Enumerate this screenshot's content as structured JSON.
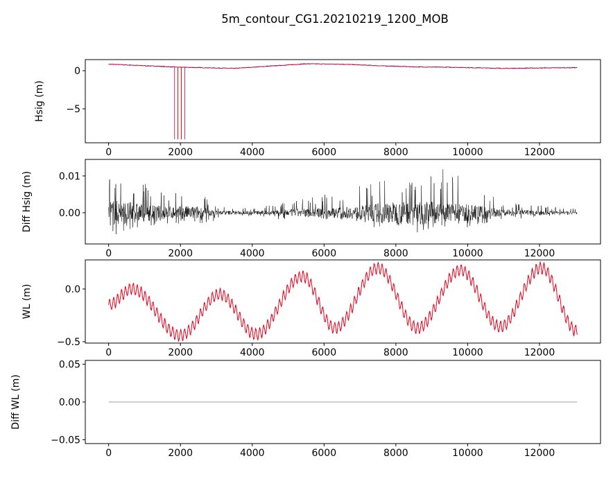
{
  "chart_data": {
    "type": "line",
    "title": "5m_contour_CG1.20210219_1200_MOB",
    "colors": {
      "series_a": "#0000ff",
      "series_b": "#ff0000",
      "diff": "#000000",
      "diff_zero": "#808080"
    },
    "x_ticks": [
      0,
      2000,
      4000,
      6000,
      8000,
      10000,
      12000
    ],
    "x_tick_labels": [
      "0",
      "2000",
      "4000",
      "6000",
      "8000",
      "10000",
      "12000"
    ],
    "xlim": [
      -650,
      13700
    ],
    "x_range": [
      0,
      13050
    ],
    "subplots": [
      {
        "ylabel": "Hsig (m)",
        "ylim": [
          -9.45,
          1.45
        ],
        "y_ticks": [
          0,
          -5
        ],
        "y_tick_labels": [
          "0",
          "−5"
        ],
        "key_x": [
          0,
          1000,
          2000,
          3000,
          3500,
          4500,
          5500,
          6500,
          7500,
          8500,
          9500,
          10500,
          11000,
          12000,
          13050
        ],
        "key_y": [
          0.85,
          0.65,
          0.45,
          0.35,
          0.3,
          0.6,
          0.9,
          0.85,
          0.65,
          0.5,
          0.45,
          0.35,
          0.3,
          0.35,
          0.4
        ],
        "spikes_x": [
          1836,
          1927,
          2024,
          2120
        ],
        "spike_y": -9.0
      },
      {
        "ylabel": "Diff Hsig (m)",
        "ylim": [
          -0.0085,
          0.0145
        ],
        "y_ticks": [
          0.01,
          0.0
        ],
        "y_tick_labels": [
          "0.01",
          "0.00"
        ],
        "envelope_x": [
          0,
          500,
          1500,
          2500,
          3000,
          4000,
          5000,
          6000,
          7000,
          8000,
          9000,
          9400,
          10000,
          11000,
          12000,
          13050
        ],
        "envelope_pos": [
          0.012,
          0.01,
          0.006,
          0.006,
          0.002,
          0.0015,
          0.003,
          0.005,
          0.008,
          0.01,
          0.011,
          0.013,
          0.008,
          0.003,
          0.002,
          0.001
        ],
        "envelope_neg": [
          -0.007,
          -0.005,
          -0.003,
          -0.004,
          -0.002,
          -0.001,
          -0.002,
          -0.002,
          -0.003,
          -0.006,
          -0.005,
          -0.004,
          -0.004,
          -0.002,
          -0.001,
          -0.0005
        ]
      },
      {
        "ylabel": "WL (m)",
        "ylim": [
          -0.513,
          0.276
        ],
        "y_ticks": [
          0.0,
          -0.5
        ],
        "y_tick_labels": [
          "0.0",
          "−0.5"
        ],
        "key_x": [
          0,
          650,
          2000,
          3100,
          4100,
          5400,
          6300,
          7500,
          8600,
          9800,
          10900,
          12050,
          13050
        ],
        "key_y": [
          -0.15,
          0.0,
          -0.44,
          -0.05,
          -0.43,
          0.12,
          -0.37,
          0.2,
          -0.37,
          0.18,
          -0.36,
          0.2,
          -0.4
        ],
        "ripple_amplitude": 0.05,
        "ripple_period": 110
      },
      {
        "ylabel": "Diff WL (m)",
        "ylim": [
          -0.055,
          0.055
        ],
        "y_ticks": [
          0.05,
          0.0,
          -0.05
        ],
        "y_tick_labels": [
          "0.05",
          "0.00",
          "−0.05"
        ],
        "value": 0.0
      }
    ]
  }
}
